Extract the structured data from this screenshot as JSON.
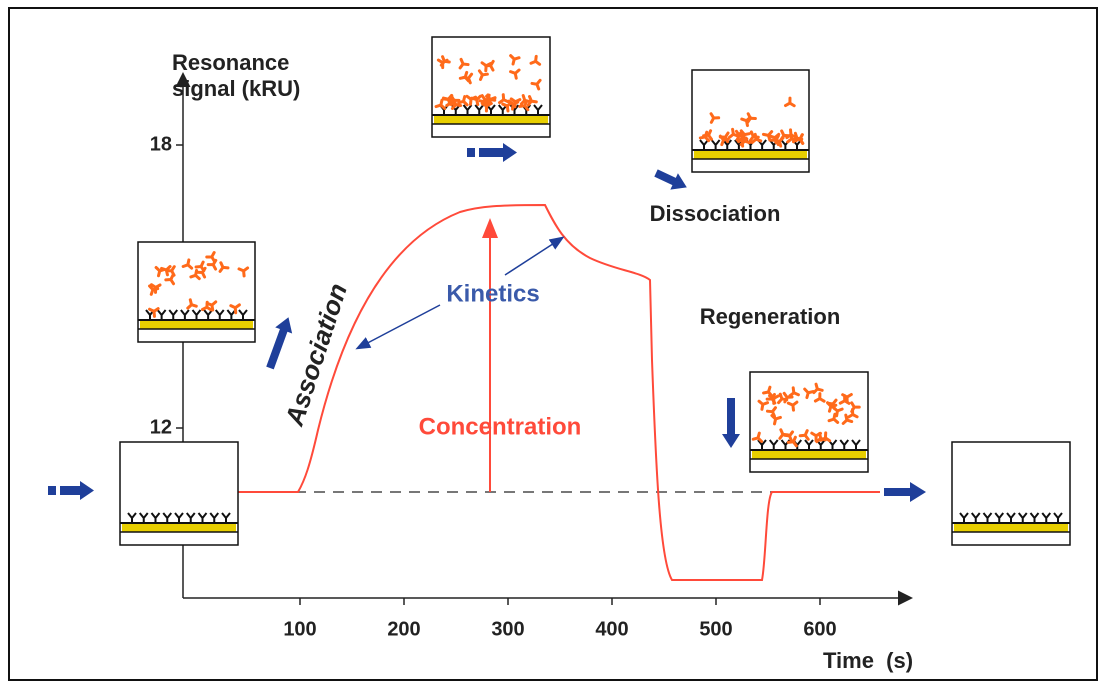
{
  "y_axis": {
    "title_lines": [
      "Resonance",
      "signal (kRU)"
    ],
    "ticks": [
      "18",
      "12"
    ]
  },
  "x_axis": {
    "title": "Time  (s)",
    "ticks": [
      "100",
      "200",
      "300",
      "400",
      "500",
      "600"
    ]
  },
  "labels": {
    "association": "Association",
    "kinetics": "Kinetics",
    "concentration": "Concentration",
    "dissociation": "Dissociation",
    "regeneration": "Regeneration"
  }
}
